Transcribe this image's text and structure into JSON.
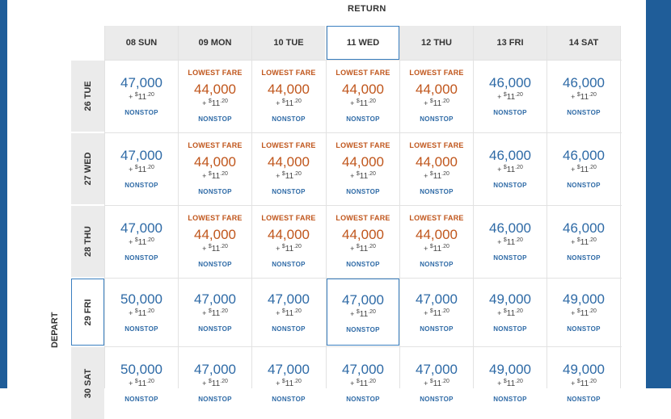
{
  "return_label": "RETURN",
  "depart_label": "DEPART",
  "columns": [
    "08 SUN",
    "09 MON",
    "10 TUE",
    "11 WED",
    "12 THU",
    "13 FRI",
    "14 SAT"
  ],
  "rows": [
    {
      "label": "26 TUE",
      "cells": [
        {
          "lowest": false,
          "miles": "47,000"
        },
        {
          "lowest": true,
          "miles": "44,000"
        },
        {
          "lowest": true,
          "miles": "44,000"
        },
        {
          "lowest": true,
          "miles": "44,000"
        },
        {
          "lowest": true,
          "miles": "44,000"
        },
        {
          "lowest": false,
          "miles": "46,000"
        },
        {
          "lowest": false,
          "miles": "46,000"
        }
      ]
    },
    {
      "label": "27 WED",
      "cells": [
        {
          "lowest": false,
          "miles": "47,000"
        },
        {
          "lowest": true,
          "miles": "44,000"
        },
        {
          "lowest": true,
          "miles": "44,000"
        },
        {
          "lowest": true,
          "miles": "44,000"
        },
        {
          "lowest": true,
          "miles": "44,000"
        },
        {
          "lowest": false,
          "miles": "46,000"
        },
        {
          "lowest": false,
          "miles": "46,000"
        }
      ]
    },
    {
      "label": "28 THU",
      "cells": [
        {
          "lowest": false,
          "miles": "47,000"
        },
        {
          "lowest": true,
          "miles": "44,000"
        },
        {
          "lowest": true,
          "miles": "44,000"
        },
        {
          "lowest": true,
          "miles": "44,000"
        },
        {
          "lowest": true,
          "miles": "44,000"
        },
        {
          "lowest": false,
          "miles": "46,000"
        },
        {
          "lowest": false,
          "miles": "46,000"
        }
      ]
    },
    {
      "label": "29 FRI",
      "cells": [
        {
          "lowest": false,
          "miles": "50,000"
        },
        {
          "lowest": false,
          "miles": "47,000"
        },
        {
          "lowest": false,
          "miles": "47,000"
        },
        {
          "lowest": false,
          "miles": "47,000"
        },
        {
          "lowest": false,
          "miles": "47,000"
        },
        {
          "lowest": false,
          "miles": "49,000"
        },
        {
          "lowest": false,
          "miles": "49,000"
        }
      ]
    },
    {
      "label": "30 SAT",
      "cells": [
        {
          "lowest": false,
          "miles": "50,000"
        },
        {
          "lowest": false,
          "miles": "47,000"
        },
        {
          "lowest": false,
          "miles": "47,000"
        },
        {
          "lowest": false,
          "miles": "47,000"
        },
        {
          "lowest": false,
          "miles": "47,000"
        },
        {
          "lowest": false,
          "miles": "49,000"
        },
        {
          "lowest": false,
          "miles": "49,000"
        }
      ]
    }
  ],
  "selected_column": 3,
  "selected_row": 3,
  "labels": {
    "lowest_fare": "LOWEST FARE",
    "tax_prefix": "+",
    "tax_dollar": "$",
    "tax_amount": "11",
    "tax_cents": ".20",
    "nonstop": "NONSTOP"
  },
  "colors": {
    "brand_blue": "#1f5d99",
    "fare_blue": "#2e6aa6",
    "lowest_orange": "#c0561c",
    "header_gray": "#ebebeb",
    "selected_border": "#3a7fc0"
  }
}
